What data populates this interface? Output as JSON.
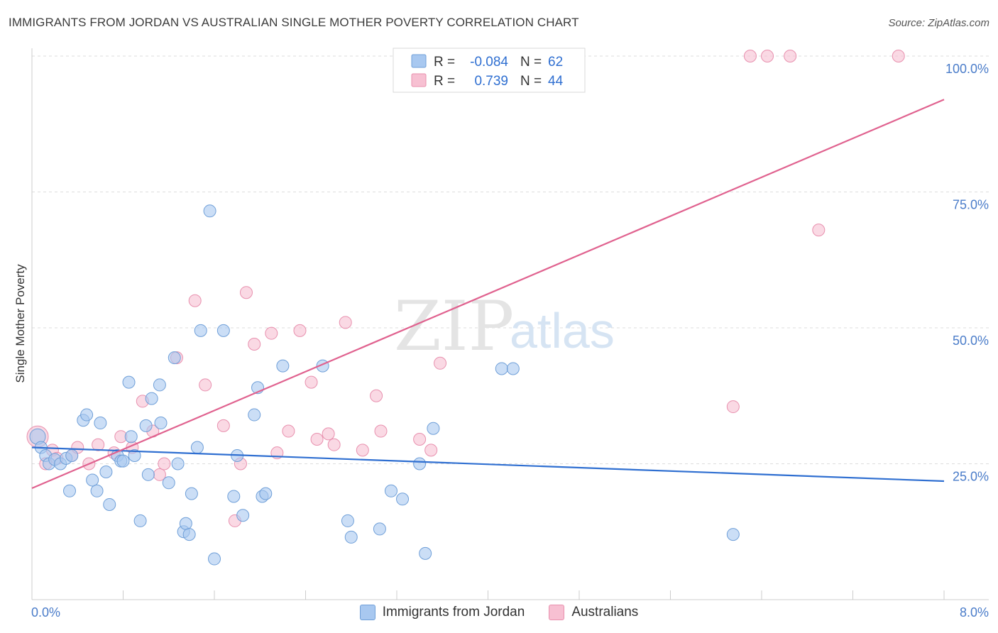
{
  "header": {
    "title": "IMMIGRANTS FROM JORDAN VS AUSTRALIAN SINGLE MOTHER POVERTY CORRELATION CHART",
    "source": "Source: ZipAtlas.com"
  },
  "watermark": {
    "zip": "ZIP",
    "atlas": "atlas"
  },
  "colors": {
    "blue_fill": "#a8c8f0",
    "blue_stroke": "#6f9fd8",
    "blue_line": "#2f6fd1",
    "pink_fill": "#f7c0d2",
    "pink_stroke": "#e890ae",
    "pink_line": "#e0628f",
    "grid": "#dddddd",
    "tick_label": "#4a7cc9"
  },
  "chart_data": {
    "type": "scatter",
    "title": "IMMIGRANTS FROM JORDAN VS AUSTRALIAN SINGLE MOTHER POVERTY CORRELATION CHART",
    "xlabel": "",
    "ylabel": "Single Mother Poverty",
    "xlim": [
      0,
      8
    ],
    "ylim": [
      0,
      100
    ],
    "x_tick_labels": [
      "0.0%",
      "8.0%"
    ],
    "y_ticks": [
      25,
      50,
      75,
      100
    ],
    "y_tick_labels": [
      "25.0%",
      "50.0%",
      "75.0%",
      "100.0%"
    ],
    "grid": true,
    "legend_position": "top-center",
    "stats": [
      {
        "r_label": "R =",
        "r_value": "-0.084",
        "n_label": "N =",
        "n_value": "62"
      },
      {
        "r_label": "R =",
        "r_value": "0.739",
        "n_label": "N =",
        "n_value": "44"
      }
    ],
    "series": [
      {
        "name": "Immigrants from Jordan",
        "color": "#a8c8f0",
        "points": [
          [
            0.05,
            30
          ],
          [
            0.08,
            28
          ],
          [
            0.12,
            26.5
          ],
          [
            0.15,
            25
          ],
          [
            0.2,
            25.8
          ],
          [
            0.25,
            25
          ],
          [
            0.3,
            26
          ],
          [
            0.35,
            26.5
          ],
          [
            0.33,
            20
          ],
          [
            0.45,
            33
          ],
          [
            0.48,
            34
          ],
          [
            0.53,
            22
          ],
          [
            0.57,
            20
          ],
          [
            0.6,
            32.5
          ],
          [
            0.65,
            23.5
          ],
          [
            0.68,
            17.5
          ],
          [
            0.75,
            26.5
          ],
          [
            0.78,
            25.5
          ],
          [
            0.8,
            25.5
          ],
          [
            0.85,
            40
          ],
          [
            0.87,
            30
          ],
          [
            0.9,
            26.5
          ],
          [
            0.95,
            14.5
          ],
          [
            1.0,
            32
          ],
          [
            1.02,
            23
          ],
          [
            1.05,
            37
          ],
          [
            1.12,
            39.5
          ],
          [
            1.13,
            32.5
          ],
          [
            1.2,
            21.5
          ],
          [
            1.25,
            44.5
          ],
          [
            1.28,
            25
          ],
          [
            1.33,
            12.5
          ],
          [
            1.35,
            14
          ],
          [
            1.38,
            12
          ],
          [
            1.4,
            19.5
          ],
          [
            1.45,
            28
          ],
          [
            1.48,
            49.5
          ],
          [
            1.56,
            71.5
          ],
          [
            1.6,
            7.5
          ],
          [
            1.68,
            49.5
          ],
          [
            1.77,
            19
          ],
          [
            1.8,
            26.5
          ],
          [
            1.85,
            15.5
          ],
          [
            1.95,
            34
          ],
          [
            1.98,
            39
          ],
          [
            2.02,
            19
          ],
          [
            2.05,
            19.5
          ],
          [
            2.2,
            43
          ],
          [
            2.55,
            43
          ],
          [
            2.77,
            14.5
          ],
          [
            2.8,
            11.5
          ],
          [
            3.05,
            13
          ],
          [
            3.15,
            20
          ],
          [
            3.25,
            18.5
          ],
          [
            3.4,
            25
          ],
          [
            3.45,
            8.5
          ],
          [
            3.52,
            31.5
          ],
          [
            4.12,
            42.5
          ],
          [
            4.22,
            42.5
          ],
          [
            6.15,
            12
          ]
        ]
      },
      {
        "name": "Australians",
        "color": "#f7c0d2",
        "points": [
          [
            0.05,
            30
          ],
          [
            0.12,
            25
          ],
          [
            0.18,
            27.5
          ],
          [
            0.22,
            26
          ],
          [
            0.35,
            26.5
          ],
          [
            0.4,
            28
          ],
          [
            0.5,
            25
          ],
          [
            0.58,
            28.5
          ],
          [
            0.72,
            27
          ],
          [
            0.78,
            30
          ],
          [
            0.88,
            28
          ],
          [
            0.97,
            36.5
          ],
          [
            1.06,
            31
          ],
          [
            1.12,
            23
          ],
          [
            1.16,
            25
          ],
          [
            1.27,
            44.5
          ],
          [
            1.43,
            55
          ],
          [
            1.52,
            39.5
          ],
          [
            1.68,
            32
          ],
          [
            1.78,
            14.5
          ],
          [
            1.83,
            25
          ],
          [
            1.88,
            56.5
          ],
          [
            1.95,
            47
          ],
          [
            2.1,
            49
          ],
          [
            2.15,
            27
          ],
          [
            2.25,
            31
          ],
          [
            2.35,
            49.5
          ],
          [
            2.45,
            40
          ],
          [
            2.5,
            29.5
          ],
          [
            2.6,
            30.5
          ],
          [
            2.65,
            28.5
          ],
          [
            2.75,
            51
          ],
          [
            2.9,
            27.5
          ],
          [
            3.02,
            37.5
          ],
          [
            3.06,
            31
          ],
          [
            3.23,
            100
          ],
          [
            3.4,
            29.5
          ],
          [
            3.5,
            27.5
          ],
          [
            3.58,
            43.5
          ],
          [
            6.15,
            35.5
          ],
          [
            6.3,
            100
          ],
          [
            6.45,
            100
          ],
          [
            6.65,
            100
          ],
          [
            6.9,
            68
          ],
          [
            7.6,
            100
          ]
        ]
      }
    ],
    "trendlines": [
      {
        "series": "Immigrants from Jordan",
        "x": [
          0,
          8
        ],
        "y": [
          28.0,
          21.8
        ]
      },
      {
        "series": "Australians",
        "x": [
          0,
          8
        ],
        "y": [
          20.5,
          92.0
        ]
      }
    ]
  }
}
